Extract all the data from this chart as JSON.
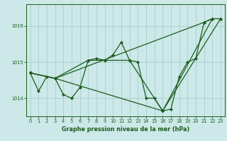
{
  "xlabel": "Graphe pression niveau de la mer (hPa)",
  "background_color": "#cce8e8",
  "plot_bg_color": "#cce8e8",
  "grid_color": "#aacece",
  "line_color": "#1a5c1a",
  "marker_color": "#1a5c1a",
  "ylim": [
    1013.5,
    1016.6
  ],
  "xlim": [
    -0.5,
    23.5
  ],
  "yticks": [
    1014,
    1015,
    1016
  ],
  "xticks": [
    0,
    1,
    2,
    3,
    4,
    5,
    6,
    7,
    8,
    9,
    10,
    11,
    12,
    13,
    14,
    15,
    16,
    17,
    18,
    19,
    20,
    21,
    22,
    23
  ],
  "series": [
    {
      "x": [
        0,
        1,
        2,
        3,
        4,
        5,
        6,
        7,
        8,
        9,
        10,
        11,
        12,
        13,
        14,
        15,
        16,
        17,
        18,
        19,
        20,
        21,
        22,
        23
      ],
      "y": [
        1014.7,
        1014.2,
        1014.6,
        1014.55,
        1014.1,
        1014.0,
        1014.3,
        1015.05,
        1015.1,
        1015.05,
        1015.2,
        1015.55,
        1015.05,
        1015.0,
        1014.0,
        1014.0,
        1013.65,
        1013.7,
        1014.6,
        1015.0,
        1015.1,
        1016.1,
        1016.2,
        1016.2
      ]
    },
    {
      "x": [
        0,
        3,
        7,
        12,
        16,
        22
      ],
      "y": [
        1014.7,
        1014.55,
        1015.05,
        1015.05,
        1013.65,
        1016.2
      ]
    },
    {
      "x": [
        0,
        3,
        21,
        22
      ],
      "y": [
        1014.7,
        1014.55,
        1016.1,
        1016.2
      ]
    },
    {
      "x": [
        0,
        3,
        16,
        23
      ],
      "y": [
        1014.7,
        1014.55,
        1013.65,
        1016.2
      ]
    }
  ]
}
